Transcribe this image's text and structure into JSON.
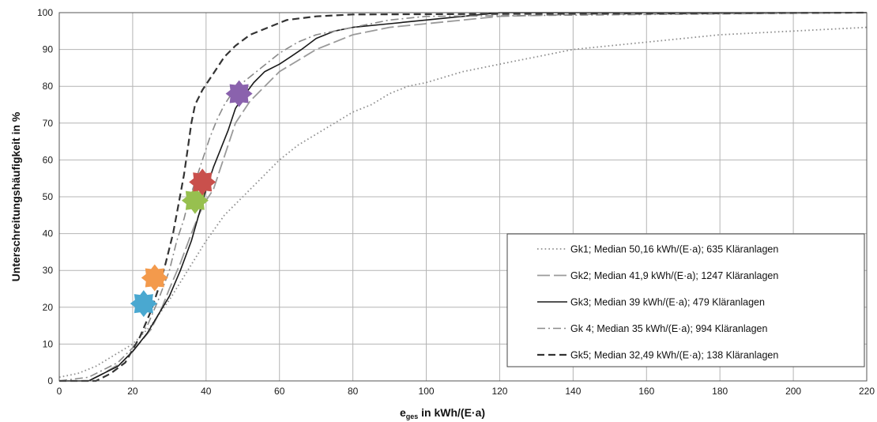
{
  "chart_data": {
    "type": "line",
    "xlabel_main": "e",
    "xlabel_sub": "ges",
    "xlabel_rest": " in kWh/(E·a)",
    "ylabel": "Unterschreitungshäufigkeit in %",
    "xlim": [
      0,
      220
    ],
    "ylim": [
      0,
      100
    ],
    "x_ticks": [
      "0",
      "20",
      "40",
      "60",
      "80",
      "100",
      "120",
      "140",
      "160",
      "180",
      "200",
      "220"
    ],
    "y_ticks": [
      "0",
      "10",
      "20",
      "30",
      "40",
      "50",
      "60",
      "70",
      "80",
      "90",
      "100"
    ],
    "grid": true,
    "legend_position": "lower-right",
    "series": [
      {
        "name": "Gk1; Median 50,16 kWh/(E·a); 635 Kläranlagen",
        "style": "dotted",
        "color": "#909090",
        "points": [
          [
            0,
            1
          ],
          [
            5,
            2
          ],
          [
            10,
            4
          ],
          [
            15,
            7
          ],
          [
            20,
            10
          ],
          [
            25,
            15
          ],
          [
            30,
            22
          ],
          [
            35,
            30
          ],
          [
            40,
            38
          ],
          [
            45,
            45
          ],
          [
            50,
            50
          ],
          [
            55,
            55
          ],
          [
            60,
            60
          ],
          [
            65,
            64
          ],
          [
            70,
            67
          ],
          [
            75,
            70
          ],
          [
            80,
            73
          ],
          [
            85,
            75
          ],
          [
            90,
            78
          ],
          [
            95,
            80
          ],
          [
            100,
            81
          ],
          [
            110,
            84
          ],
          [
            120,
            86
          ],
          [
            130,
            88
          ],
          [
            140,
            90
          ],
          [
            160,
            92
          ],
          [
            180,
            94
          ],
          [
            200,
            95
          ],
          [
            220,
            96
          ]
        ]
      },
      {
        "name": "Gk2; Median 41,9 kWh/(E·a); 1247 Kläranlagen",
        "style": "longdash",
        "color": "#9a9a9a",
        "points": [
          [
            0,
            0
          ],
          [
            8,
            0
          ],
          [
            12,
            2
          ],
          [
            17,
            5
          ],
          [
            20,
            8
          ],
          [
            25,
            14
          ],
          [
            28,
            20
          ],
          [
            30,
            25
          ],
          [
            33,
            32
          ],
          [
            36,
            40
          ],
          [
            38,
            45
          ],
          [
            40,
            49
          ],
          [
            42,
            52
          ],
          [
            44,
            58
          ],
          [
            46,
            64
          ],
          [
            48,
            70
          ],
          [
            50,
            73
          ],
          [
            52,
            76
          ],
          [
            55,
            79
          ],
          [
            58,
            82
          ],
          [
            60,
            84
          ],
          [
            65,
            87
          ],
          [
            70,
            90
          ],
          [
            75,
            92
          ],
          [
            80,
            94
          ],
          [
            90,
            96
          ],
          [
            100,
            97
          ],
          [
            110,
            98
          ],
          [
            120,
            99
          ],
          [
            140,
            99.5
          ],
          [
            220,
            100
          ]
        ]
      },
      {
        "name": "Gk3; Median 39 kWh/(E·a); 479 Kläranlagen",
        "style": "solid",
        "color": "#1a1a1a",
        "points": [
          [
            0,
            0
          ],
          [
            8,
            0
          ],
          [
            12,
            2
          ],
          [
            16,
            4
          ],
          [
            20,
            8
          ],
          [
            24,
            13
          ],
          [
            27,
            18
          ],
          [
            30,
            23
          ],
          [
            33,
            30
          ],
          [
            36,
            38
          ],
          [
            38,
            45
          ],
          [
            40,
            52
          ],
          [
            42,
            58
          ],
          [
            44,
            63
          ],
          [
            46,
            68
          ],
          [
            48,
            74
          ],
          [
            50,
            77
          ],
          [
            53,
            81
          ],
          [
            56,
            84
          ],
          [
            60,
            86
          ],
          [
            63,
            88
          ],
          [
            66,
            90
          ],
          [
            70,
            93
          ],
          [
            75,
            95
          ],
          [
            80,
            96
          ],
          [
            90,
            97
          ],
          [
            100,
            98
          ],
          [
            110,
            99
          ],
          [
            120,
            100
          ],
          [
            220,
            100
          ]
        ]
      },
      {
        "name": "Gk 4; Median 35 kWh/(E·a); 994 Kläranlagen",
        "style": "dashdot",
        "color": "#8a8a8a",
        "points": [
          [
            0,
            0
          ],
          [
            8,
            1
          ],
          [
            12,
            3
          ],
          [
            16,
            5
          ],
          [
            20,
            9
          ],
          [
            24,
            15
          ],
          [
            27,
            22
          ],
          [
            30,
            30
          ],
          [
            32,
            38
          ],
          [
            34,
            44
          ],
          [
            35,
            48
          ],
          [
            37,
            54
          ],
          [
            39,
            60
          ],
          [
            41,
            66
          ],
          [
            43,
            71
          ],
          [
            45,
            75
          ],
          [
            47,
            78
          ],
          [
            50,
            81
          ],
          [
            55,
            85
          ],
          [
            60,
            89
          ],
          [
            65,
            92
          ],
          [
            70,
            94
          ],
          [
            80,
            96
          ],
          [
            90,
            98
          ],
          [
            100,
            99
          ],
          [
            220,
            100
          ]
        ]
      },
      {
        "name": "Gk5; Median 32,49 kWh/(E·a); 138 Kläranlagen",
        "style": "dashed",
        "color": "#333333",
        "points": [
          [
            0,
            0
          ],
          [
            10,
            0
          ],
          [
            14,
            2
          ],
          [
            18,
            5
          ],
          [
            22,
            12
          ],
          [
            25,
            19
          ],
          [
            27,
            25
          ],
          [
            29,
            32
          ],
          [
            31,
            40
          ],
          [
            32.5,
            48
          ],
          [
            34,
            56
          ],
          [
            35,
            63
          ],
          [
            36,
            70
          ],
          [
            37,
            75
          ],
          [
            39,
            79
          ],
          [
            41,
            82
          ],
          [
            43,
            85
          ],
          [
            45,
            88
          ],
          [
            48,
            91
          ],
          [
            52,
            94
          ],
          [
            57,
            96
          ],
          [
            62,
            98
          ],
          [
            70,
            99
          ],
          [
            80,
            99.5
          ],
          [
            220,
            100
          ]
        ]
      }
    ],
    "markers": [
      {
        "x": 23,
        "y": 21,
        "color": "#4aa8d0"
      },
      {
        "x": 26,
        "y": 28,
        "color": "#f39a4c"
      },
      {
        "x": 37,
        "y": 49,
        "color": "#97c04f"
      },
      {
        "x": 39,
        "y": 54,
        "color": "#c9504c"
      },
      {
        "x": 49,
        "y": 78,
        "color": "#8a62ad"
      }
    ]
  }
}
